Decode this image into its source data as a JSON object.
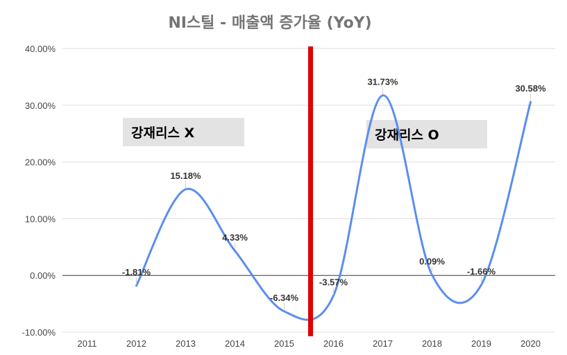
{
  "chart_data": {
    "type": "line",
    "title": "NI스틸 - 매출액 증가율 (YoY)",
    "xlabel": "",
    "ylabel": "",
    "categories": [
      "2011",
      "2012",
      "2013",
      "2014",
      "2015",
      "2016",
      "2017",
      "2018",
      "2019",
      "2020"
    ],
    "series": [
      {
        "values": [
          null,
          -1.81,
          15.18,
          4.33,
          -6.34,
          -3.57,
          31.73,
          0.09,
          -1.66,
          30.58
        ],
        "data_labels": [
          "",
          "-1.81%",
          "15.18%",
          "4.33%",
          "-6.34%",
          "-3.57%",
          "31.73%",
          "0.09%",
          "-1.66%",
          "30.58%"
        ],
        "color": "#5b8def"
      }
    ],
    "ylim": [
      -10,
      40
    ],
    "y_ticks": [
      "-10.00%",
      "0.00%",
      "10.00%",
      "20.00%",
      "30.00%",
      "40.00%"
    ],
    "y_tick_values": [
      -10,
      0,
      10,
      20,
      30,
      40
    ],
    "grid": true,
    "curve": "smooth",
    "annotations": [
      {
        "text": "강재리스 X"
      },
      {
        "text": "강재리스 O"
      }
    ],
    "divider": {
      "between": [
        "2015",
        "2016"
      ],
      "color": "#e00000"
    }
  }
}
